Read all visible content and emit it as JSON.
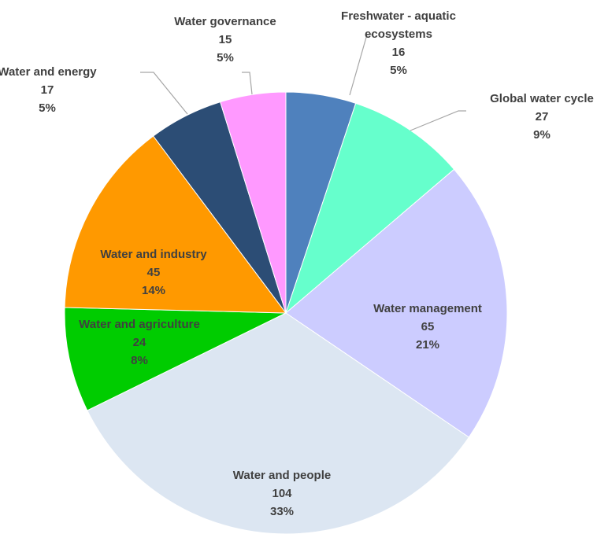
{
  "chart_data": {
    "type": "pie",
    "title": "",
    "start_angle_deg": 0,
    "direction": "clockwise",
    "slices": [
      {
        "label": "Freshwater - aquatic ecosystems",
        "label_lines": [
          "Freshwater - aquatic",
          "ecosystems"
        ],
        "value": 16,
        "percent": "5%",
        "color": "#4f81bd"
      },
      {
        "label": "Global water cycle",
        "label_lines": [
          "Global water cycle"
        ],
        "value": 27,
        "percent": "9%",
        "color": "#66ffcc"
      },
      {
        "label": "Water management",
        "label_lines": [
          "Water management"
        ],
        "value": 65,
        "percent": "21%",
        "color": "#ccccff"
      },
      {
        "label": "Water and people",
        "label_lines": [
          "Water and people"
        ],
        "value": 104,
        "percent": "33%",
        "color": "#dce6f2"
      },
      {
        "label": "Water and agriculture",
        "label_lines": [
          "Water and agriculture"
        ],
        "value": 24,
        "percent": "8%",
        "color": "#00cc00"
      },
      {
        "label": "Water and industry",
        "label_lines": [
          "Water and industry"
        ],
        "value": 45,
        "percent": "14%",
        "color": "#ff9900"
      },
      {
        "label": "Water and energy",
        "label_lines": [
          "Water and energy"
        ],
        "value": 17,
        "percent": "5%",
        "color": "#2c4d75"
      },
      {
        "label": "Water governance",
        "label_lines": [
          "Water governance"
        ],
        "value": 15,
        "percent": "5%",
        "color": "#ff99ff"
      }
    ]
  }
}
